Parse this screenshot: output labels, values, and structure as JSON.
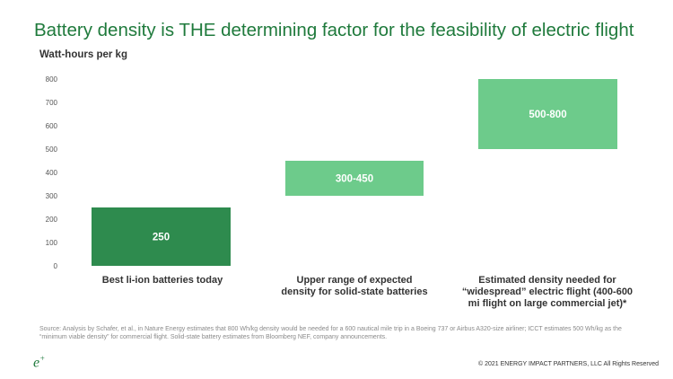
{
  "title": "Battery density is THE determining factor for the feasibility of electric flight",
  "chart_data": {
    "type": "bar",
    "ylabel": "Watt-hours per kg",
    "ylim": [
      0,
      800
    ],
    "yticks": [
      0,
      100,
      200,
      300,
      400,
      500,
      600,
      700,
      800
    ],
    "grid": false,
    "bars": [
      {
        "label": "250",
        "low": 0,
        "high": 250,
        "color": "#2e8b4e",
        "category_lines": [
          "Best li-ion batteries today"
        ]
      },
      {
        "label": "300-450",
        "low": 300,
        "high": 450,
        "color": "#6dcb8b",
        "category_lines": [
          "Upper range of expected",
          "density for solid-state batteries"
        ]
      },
      {
        "label": "500-800",
        "low": 500,
        "high": 800,
        "color": "#6dcb8b",
        "category_lines": [
          "Estimated density needed for",
          "“widespread” electric flight (400-600",
          "mi flight on large commercial  jet)*"
        ]
      }
    ]
  },
  "source": "Source: Analysis by Schafer, et al., in Nature Energy estimates that 800 Wh/kg density would be needed for a 600 nautical mile trip in a Boeing 737 or Airbus A320-size airliner; ICCT estimates 500 Wh/kg as the “minimum viable density” for commercial flight. Solid-state battery estimates from Bloomberg NEF, company announcements.",
  "logo": {
    "letter": "e",
    "mark": "+"
  },
  "copyright": "© 2021 ENERGY IMPACT PARTNERS, LLC All Rights Reserved"
}
